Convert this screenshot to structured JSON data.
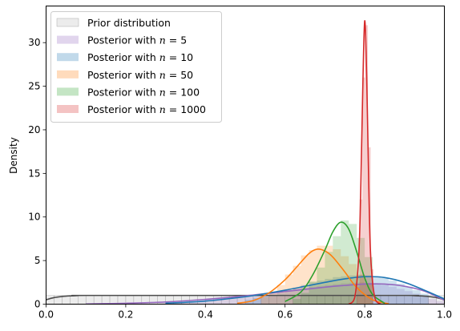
{
  "chart_data": {
    "type": "area",
    "title": "",
    "xlabel": "",
    "ylabel": "Density",
    "xlim": [
      0.0,
      1.0
    ],
    "ylim": [
      0,
      34.2
    ],
    "xticks": [
      0.0,
      0.2,
      0.4,
      0.6,
      0.8,
      1.0
    ],
    "xtick_labels": [
      "0.0",
      "0.2",
      "0.4",
      "0.6",
      "0.8",
      "1.0"
    ],
    "yticks": [
      0,
      5,
      10,
      15,
      20,
      25,
      30
    ],
    "ytick_labels": [
      "0",
      "5",
      "10",
      "15",
      "20",
      "25",
      "30"
    ],
    "grid": false,
    "legend_position": "top-left",
    "series": [
      {
        "name": "Prior distribution",
        "fill_color": "#bfbfbf",
        "line_color": "#4d4d4d",
        "hist_range": [
          0.0,
          1.0
        ],
        "hist": [
          1.0,
          1.0,
          1.0,
          1.0,
          1.0,
          1.0,
          1.0,
          1.0,
          1.0,
          1.0,
          1.0,
          1.0,
          1.0,
          1.0,
          1.0,
          1.0,
          1.0,
          1.0,
          1.0,
          1.0,
          1.0,
          1.0,
          1.0,
          1.0,
          1.0,
          1.0,
          1.0,
          1.0,
          1.0,
          1.0,
          1.0,
          1.0,
          1.0,
          1.0,
          1.0,
          1.0,
          1.0,
          1.0,
          1.0,
          1.0,
          1.0,
          1.0,
          1.0,
          1.0,
          1.0,
          1.0,
          1.0,
          1.0,
          1.0,
          1.0
        ],
        "kde_x": [
          0.0,
          0.02,
          0.04,
          0.06,
          0.08,
          0.1,
          0.5,
          0.9,
          0.92,
          0.94,
          0.96,
          0.98,
          1.0
        ],
        "kde_y": [
          0.5,
          0.75,
          0.88,
          0.95,
          0.98,
          1.0,
          1.0,
          1.0,
          0.98,
          0.95,
          0.88,
          0.75,
          0.5
        ]
      },
      {
        "name": "Posterior with $n=5$",
        "fill_color": "#9467bd",
        "line_color": "#9467bd",
        "hist_range": [
          0.28,
          1.0
        ],
        "hist": [
          0.1,
          0.15,
          0.2,
          0.25,
          0.3,
          0.4,
          0.5,
          0.6,
          0.7,
          0.8,
          0.9,
          1.0,
          1.1,
          1.2,
          1.35,
          1.5,
          1.6,
          1.75,
          1.9,
          2.0,
          2.1,
          2.2,
          2.3,
          2.4,
          2.45,
          2.5,
          2.45,
          2.35,
          2.2,
          2.0,
          1.75,
          1.5,
          1.2,
          0.9,
          0.6,
          0.35
        ],
        "kde_x": [
          0.1,
          0.2,
          0.3,
          0.4,
          0.5,
          0.6,
          0.7,
          0.75,
          0.8,
          0.85,
          0.9,
          0.95,
          1.0
        ],
        "kde_y": [
          0.02,
          0.1,
          0.25,
          0.55,
          0.95,
          1.45,
          1.95,
          2.15,
          2.3,
          2.3,
          2.05,
          1.5,
          0.45
        ]
      },
      {
        "name": "Posterior with $n=10$",
        "fill_color": "#1f77b4",
        "line_color": "#1f77b4",
        "hist_range": [
          0.5,
          0.96
        ],
        "hist": [
          0.5,
          0.7,
          0.9,
          1.1,
          1.3,
          1.6,
          1.9,
          2.2,
          2.5,
          2.7,
          2.9,
          3.1,
          3.2,
          3.3,
          3.35,
          3.3,
          3.2,
          3.0,
          2.7,
          2.35,
          2.0,
          1.6,
          1.2
        ],
        "kde_x": [
          0.3,
          0.4,
          0.5,
          0.55,
          0.6,
          0.65,
          0.7,
          0.75,
          0.8,
          0.85,
          0.9,
          0.95,
          1.0
        ],
        "kde_y": [
          0.1,
          0.35,
          0.85,
          1.2,
          1.6,
          2.05,
          2.5,
          2.9,
          3.15,
          3.05,
          2.5,
          1.6,
          0.6
        ]
      },
      {
        "name": "Posterior with $n=50$",
        "fill_color": "#ff7f0e",
        "line_color": "#ff7f0e",
        "hist_range": [
          0.54,
          0.82
        ],
        "hist": [
          0.8,
          1.4,
          2.2,
          3.4,
          4.4,
          5.6,
          6.2,
          6.7,
          6.7,
          6.3,
          5.5,
          4.6,
          3.4,
          2.4
        ],
        "kde_x": [
          0.48,
          0.52,
          0.56,
          0.6,
          0.63,
          0.66,
          0.68,
          0.7,
          0.72,
          0.75,
          0.78,
          0.82,
          0.86
        ],
        "kde_y": [
          0.1,
          0.4,
          1.3,
          2.8,
          4.3,
          5.8,
          6.3,
          6.1,
          5.4,
          3.7,
          1.9,
          0.5,
          0.05
        ]
      },
      {
        "name": "Posterior with $n=100$",
        "fill_color": "#2ca02c",
        "line_color": "#2ca02c",
        "hist_range": [
          0.62,
          0.82
        ],
        "hist": [
          0.6,
          1.3,
          2.6,
          4.2,
          6.0,
          7.8,
          9.6,
          9.2,
          7.6,
          5.4
        ],
        "kde_x": [
          0.6,
          0.64,
          0.67,
          0.7,
          0.72,
          0.74,
          0.76,
          0.78,
          0.8,
          0.82,
          0.85
        ],
        "kde_y": [
          0.3,
          1.4,
          3.4,
          6.2,
          8.3,
          9.4,
          8.6,
          6.0,
          3.0,
          1.1,
          0.1
        ]
      },
      {
        "name": "Posterior with $n=1000$",
        "fill_color": "#d62728",
        "line_color": "#d62728",
        "hist_range": [
          0.78,
          0.822
        ],
        "hist": [
          2.0,
          12.0,
          26.0,
          32.0,
          18.0,
          4.0
        ],
        "kde_x": [
          0.76,
          0.775,
          0.785,
          0.79,
          0.795,
          0.8,
          0.805,
          0.81,
          0.815,
          0.825,
          0.84
        ],
        "kde_y": [
          0.0,
          0.8,
          5.5,
          13.0,
          24.5,
          32.5,
          26.0,
          14.0,
          5.5,
          0.8,
          0.0
        ]
      }
    ]
  },
  "legend": {
    "entries": [
      {
        "prefix": "Prior distribution",
        "n": ""
      },
      {
        "prefix": "Posterior with ",
        "n": "5"
      },
      {
        "prefix": "Posterior with ",
        "n": "10"
      },
      {
        "prefix": "Posterior with ",
        "n": "50"
      },
      {
        "prefix": "Posterior with ",
        "n": "100"
      },
      {
        "prefix": "Posterior with ",
        "n": "1000"
      }
    ],
    "n_symbol": "n",
    "equals": " = "
  }
}
